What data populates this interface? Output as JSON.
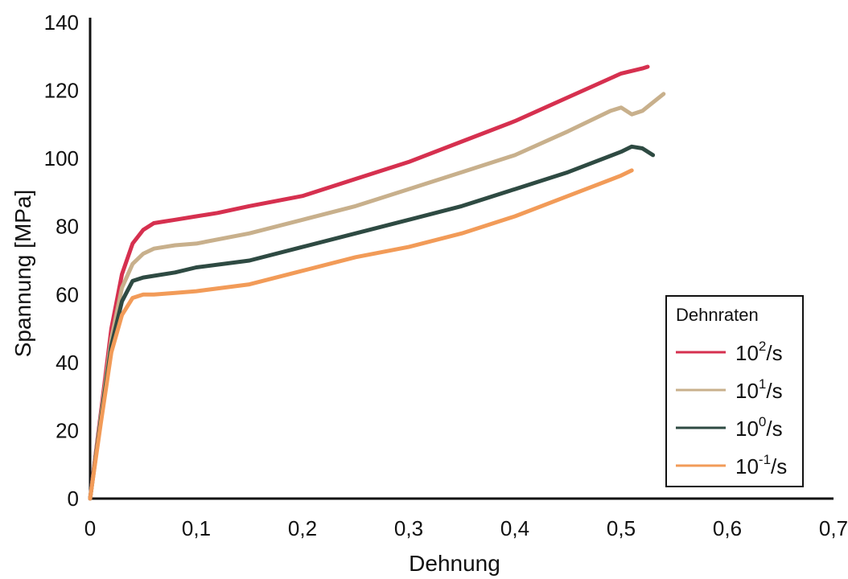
{
  "chart_data": {
    "type": "line",
    "xlabel": "Dehnung",
    "ylabel": "Spannung [MPa]",
    "xlim": [
      0,
      0.7
    ],
    "ylim": [
      0,
      140
    ],
    "x_ticks": [
      "0",
      "0,1",
      "0,2",
      "0,3",
      "0,4",
      "0,5",
      "0,6",
      "0,7"
    ],
    "x_tick_values": [
      0,
      0.1,
      0.2,
      0.3,
      0.4,
      0.5,
      0.6,
      0.7
    ],
    "y_ticks": [
      "0",
      "20",
      "40",
      "60",
      "80",
      "100",
      "120",
      "140"
    ],
    "y_tick_values": [
      0,
      20,
      40,
      60,
      80,
      100,
      120,
      140
    ],
    "grid": false,
    "legend": {
      "title": "Dehnraten",
      "position": "bottom-right"
    },
    "series": [
      {
        "name": "10²/s",
        "label_base": "10",
        "label_sup": "2",
        "label_suffix": "/s",
        "color": "#d6304f",
        "x": [
          0,
          0.01,
          0.02,
          0.03,
          0.04,
          0.05,
          0.06,
          0.07,
          0.08,
          0.1,
          0.12,
          0.15,
          0.2,
          0.25,
          0.3,
          0.35,
          0.4,
          0.45,
          0.5,
          0.52,
          0.525
        ],
        "y": [
          0,
          25,
          50,
          66,
          75,
          79,
          81,
          81.5,
          82,
          83,
          84,
          86,
          89,
          94,
          99,
          105,
          111,
          118,
          125,
          126.5,
          127
        ]
      },
      {
        "name": "10¹/s",
        "label_base": "10",
        "label_sup": "1",
        "label_suffix": "/s",
        "color": "#c8b08c",
        "x": [
          0,
          0.01,
          0.02,
          0.03,
          0.04,
          0.05,
          0.06,
          0.08,
          0.1,
          0.15,
          0.2,
          0.25,
          0.3,
          0.35,
          0.4,
          0.45,
          0.49,
          0.5,
          0.51,
          0.52,
          0.54
        ],
        "y": [
          0,
          24,
          47,
          62,
          69,
          72,
          73.5,
          74.5,
          75,
          78,
          82,
          86,
          91,
          96,
          101,
          108,
          114,
          115,
          113,
          114,
          119
        ]
      },
      {
        "name": "10⁰/s",
        "label_base": "10",
        "label_sup": "0",
        "label_suffix": "/s",
        "color": "#2e4a42",
        "x": [
          0,
          0.01,
          0.02,
          0.03,
          0.04,
          0.05,
          0.06,
          0.08,
          0.1,
          0.15,
          0.2,
          0.25,
          0.3,
          0.35,
          0.4,
          0.45,
          0.5,
          0.51,
          0.52,
          0.53
        ],
        "y": [
          0,
          23,
          45,
          58,
          64,
          65,
          65.5,
          66.5,
          68,
          70,
          74,
          78,
          82,
          86,
          91,
          96,
          102,
          103.5,
          103,
          101
        ]
      },
      {
        "name": "10⁻¹/s",
        "label_base": "10",
        "label_sup": "-1",
        "label_suffix": "/s",
        "color": "#f29b58",
        "x": [
          0,
          0.01,
          0.02,
          0.03,
          0.04,
          0.05,
          0.06,
          0.08,
          0.1,
          0.15,
          0.2,
          0.25,
          0.3,
          0.35,
          0.4,
          0.45,
          0.5,
          0.51
        ],
        "y": [
          0,
          22,
          43,
          54,
          59,
          60,
          60,
          60.5,
          61,
          63,
          67,
          71,
          74,
          78,
          83,
          89,
          95,
          96.5
        ]
      }
    ]
  }
}
